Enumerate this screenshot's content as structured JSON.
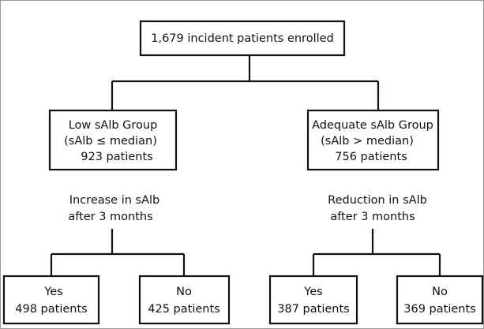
{
  "top": {
    "lines": [
      "1,679 incident patients enrolled"
    ]
  },
  "groups": [
    {
      "lines": [
        "Low sAlb Group",
        "(sAlb ≤ median)",
        "923 patients"
      ],
      "criterion": [
        "Increase in sAlb",
        "after 3 months"
      ],
      "outcomes": [
        {
          "lines": [
            "Yes",
            "498 patients"
          ]
        },
        {
          "lines": [
            "No",
            "425 patients"
          ]
        }
      ]
    },
    {
      "lines": [
        "Adequate sAlb Group",
        "(sAlb > median)",
        "756 patients"
      ],
      "criterion": [
        "Reduction in sAlb",
        "after 3 months"
      ],
      "outcomes": [
        {
          "lines": [
            "Yes",
            "387 patients"
          ]
        },
        {
          "lines": [
            "No",
            "369 patients"
          ]
        }
      ]
    }
  ]
}
